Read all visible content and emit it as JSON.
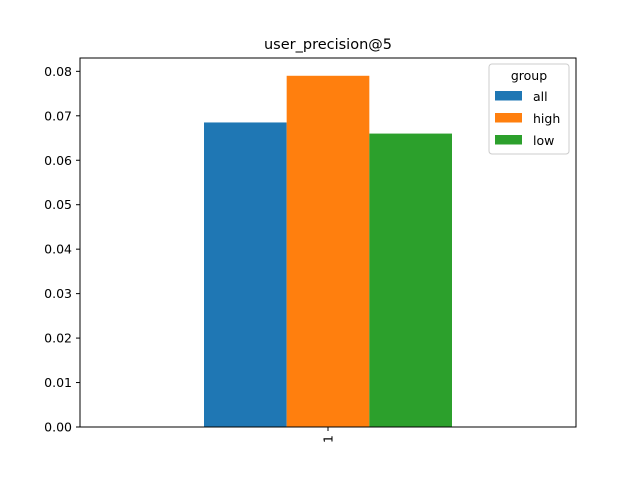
{
  "chart_data": {
    "type": "bar",
    "title": "user_precision@5",
    "xlabel": "",
    "ylabel": "",
    "categories": [
      "1"
    ],
    "series": [
      {
        "name": "all",
        "values": [
          0.0685
        ],
        "color": "#1f77b4"
      },
      {
        "name": "high",
        "values": [
          0.079
        ],
        "color": "#ff7f0e"
      },
      {
        "name": "low",
        "values": [
          0.066
        ],
        "color": "#2ca02c"
      }
    ],
    "ylim": [
      0,
      0.083
    ],
    "yticks": [
      "0.00",
      "0.01",
      "0.02",
      "0.03",
      "0.04",
      "0.05",
      "0.06",
      "0.07",
      "0.08"
    ],
    "grid": false,
    "legend": {
      "title": "group",
      "placement": "top-right"
    }
  }
}
